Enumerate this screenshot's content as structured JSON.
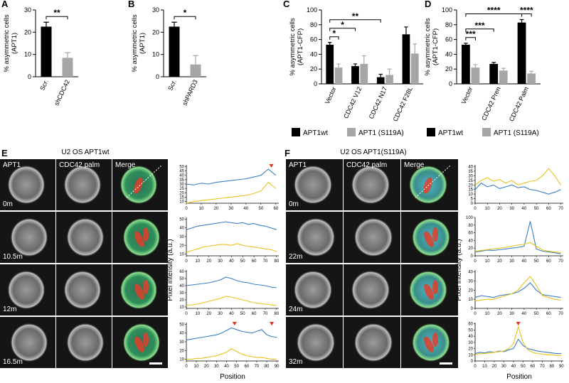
{
  "chart_data": [
    {
      "type": "bar",
      "panel": "A",
      "ylabel": [
        "% asymmetric cells",
        "(APT1)"
      ],
      "categories": [
        "Scr.",
        "shCDC42"
      ],
      "values": [
        22.5,
        8.5
      ],
      "errors": [
        2,
        2.3
      ],
      "colors": [
        "#000000",
        "#a6a6a6"
      ],
      "ylim": [
        0,
        30
      ],
      "yticks": [
        0,
        10,
        20,
        30
      ],
      "annotations": [
        {
          "text": "**",
          "bars": [
            [
              0,
              0
            ],
            [
              0,
              1
            ]
          ]
        }
      ]
    },
    {
      "type": "bar",
      "panel": "B",
      "ylabel": [
        "% asymmetric cells",
        "(APT1)"
      ],
      "categories": [
        "Scr.",
        "shPARD3"
      ],
      "values": [
        22.5,
        5.5
      ],
      "errors": [
        2,
        4
      ],
      "colors": [
        "#000000",
        "#a6a6a6"
      ],
      "ylim": [
        0,
        30
      ],
      "yticks": [
        0,
        10,
        20,
        30
      ],
      "annotations": [
        {
          "text": "*",
          "bars": [
            [
              0,
              0
            ],
            [
              0,
              1
            ]
          ]
        }
      ]
    },
    {
      "type": "bar",
      "panel": "C",
      "ylabel": [
        "% asymmetric cells",
        "(APT1-CFP)"
      ],
      "categories": [
        "Vector",
        "CDC42 V12",
        "CDC42 N17",
        "CDC42 F28L"
      ],
      "series": [
        {
          "name": "APT1wt",
          "color": "#000000",
          "values": [
            53,
            24,
            9,
            67
          ],
          "errors": [
            3,
            3,
            4,
            10
          ]
        },
        {
          "name": "APT1 (S119A)",
          "color": "#a6a6a6",
          "values": [
            22,
            27,
            12,
            41
          ],
          "errors": [
            5,
            11,
            8,
            13
          ]
        }
      ],
      "ylim": [
        0,
        100
      ],
      "yticks": [
        0,
        20,
        40,
        60,
        80,
        100
      ],
      "annotations": [
        {
          "text": "*",
          "bars": [
            [
              0,
              0
            ],
            [
              1,
              0
            ]
          ]
        },
        {
          "text": "*",
          "bars": [
            [
              0,
              0
            ],
            [
              0,
              1
            ]
          ]
        },
        {
          "text": "**",
          "bars": [
            [
              0,
              0
            ],
            [
              0,
              2
            ]
          ]
        }
      ]
    },
    {
      "type": "bar",
      "panel": "D",
      "ylabel": [
        "% asymmetric cells",
        "(APT1-CFP)"
      ],
      "categories": [
        "Vector",
        "CDC42 Pren",
        "CDC42 Palm"
      ],
      "series": [
        {
          "name": "APT1wt",
          "color": "#000000",
          "values": [
            53,
            27,
            83
          ],
          "errors": [
            2,
            2,
            4
          ]
        },
        {
          "name": "APT1 (S119A)",
          "color": "#a6a6a6",
          "values": [
            22,
            18,
            14
          ],
          "errors": [
            4,
            3,
            3
          ]
        }
      ],
      "ylim": [
        0,
        100
      ],
      "yticks": [
        0,
        20,
        40,
        60,
        80,
        100
      ],
      "annotations": [
        {
          "text": "***",
          "bars": [
            [
              0,
              0
            ],
            [
              1,
              0
            ]
          ]
        },
        {
          "text": "***",
          "bars": [
            [
              0,
              0
            ],
            [
              0,
              1
            ]
          ]
        },
        {
          "text": "****",
          "bars": [
            [
              0,
              0
            ],
            [
              0,
              2
            ]
          ]
        },
        {
          "text": "****",
          "bars": [
            [
              0,
              2
            ],
            [
              1,
              2
            ]
          ]
        }
      ]
    },
    {
      "type": "line",
      "x": [
        0,
        5,
        10,
        15,
        20,
        25,
        30,
        35,
        40,
        45,
        50,
        55,
        60
      ],
      "series": [
        {
          "color": "#3b7fc4",
          "values": [
            30,
            29,
            31,
            30,
            32,
            33,
            34,
            35,
            36,
            38,
            40,
            47,
            40
          ]
        },
        {
          "color": "#e8c21f",
          "values": [
            8,
            10,
            11,
            12,
            13,
            14,
            15,
            16,
            17,
            19,
            22,
            32,
            25
          ]
        }
      ],
      "xlim": [
        0,
        62
      ],
      "xticks": [
        0,
        10,
        20,
        30,
        40,
        50,
        60
      ],
      "ylim": [
        8,
        52
      ],
      "yticks": [
        10,
        15,
        20,
        25,
        30,
        35,
        40,
        45,
        50
      ],
      "markers": [
        57
      ],
      "marker_color": "#e03020"
    },
    {
      "type": "line",
      "x": [
        0,
        5,
        10,
        15,
        20,
        25,
        30,
        35,
        40,
        45,
        50,
        55,
        60,
        65,
        70,
        75,
        80
      ],
      "series": [
        {
          "color": "#3b7fc4",
          "values": [
            38,
            40,
            42,
            43,
            44,
            45,
            46,
            47,
            46,
            45,
            46,
            44,
            45,
            43,
            42,
            40,
            38
          ]
        },
        {
          "color": "#e8c21f",
          "values": [
            12,
            14,
            16,
            18,
            19,
            20,
            21,
            21,
            20,
            22,
            20,
            19,
            18,
            17,
            16,
            15,
            13
          ]
        }
      ],
      "xlim": [
        0,
        82
      ],
      "xticks": [
        0,
        10,
        20,
        30,
        40,
        50,
        60,
        70,
        80
      ],
      "ylim": [
        8,
        52
      ],
      "yticks": [
        10,
        20,
        30,
        40,
        50
      ]
    },
    {
      "type": "line",
      "x": [
        0,
        5,
        10,
        15,
        20,
        25,
        30,
        35,
        40,
        45,
        50,
        55,
        60,
        65,
        70,
        75,
        80
      ],
      "series": [
        {
          "color": "#3b7fc4",
          "values": [
            40,
            41,
            42,
            43,
            44,
            46,
            48,
            52,
            50,
            47,
            45,
            44,
            42,
            41,
            40,
            38,
            37
          ]
        },
        {
          "color": "#e8c21f",
          "values": [
            12,
            13,
            14,
            16,
            18,
            20,
            22,
            25,
            24,
            22,
            20,
            18,
            16,
            15,
            14,
            13,
            12
          ]
        }
      ],
      "xlim": [
        0,
        82
      ],
      "xticks": [
        0,
        10,
        20,
        30,
        40,
        50,
        60,
        70,
        80
      ],
      "ylim": [
        8,
        62
      ],
      "yticks": [
        10,
        20,
        30,
        40,
        50,
        60
      ]
    },
    {
      "type": "line",
      "x": [
        0,
        5,
        10,
        15,
        20,
        25,
        30,
        35,
        40,
        45,
        50,
        55,
        60,
        65,
        70,
        75,
        80,
        85,
        90
      ],
      "series": [
        {
          "color": "#3b7fc4",
          "values": [
            32,
            33,
            34,
            35,
            36,
            37,
            38,
            40,
            43,
            46,
            44,
            42,
            41,
            40,
            42,
            44,
            38,
            36,
            35
          ]
        },
        {
          "color": "#e8c21f",
          "values": [
            10,
            10,
            11,
            11,
            12,
            13,
            14,
            16,
            18,
            22,
            19,
            16,
            14,
            13,
            12,
            12,
            11,
            10,
            10
          ]
        }
      ],
      "xlim": [
        0,
        92
      ],
      "xticks": [
        0,
        10,
        20,
        30,
        40,
        50,
        60,
        70,
        80,
        90
      ],
      "ylim": [
        8,
        52
      ],
      "yticks": [
        10,
        20,
        30,
        40,
        50
      ],
      "markers": [
        48,
        85
      ],
      "marker_color": "#e03020"
    },
    {
      "type": "line",
      "x": [
        0,
        5,
        10,
        15,
        20,
        25,
        30,
        35,
        40,
        45,
        50,
        55,
        60,
        65,
        70
      ],
      "series": [
        {
          "color": "#3b7fc4",
          "values": [
            15,
            22,
            18,
            20,
            16,
            18,
            20,
            17,
            18,
            15,
            14,
            12,
            10,
            12,
            15
          ]
        },
        {
          "color": "#e8c21f",
          "values": [
            20,
            25,
            28,
            24,
            26,
            22,
            25,
            20,
            22,
            24,
            25,
            30,
            38,
            30,
            20
          ]
        }
      ],
      "xlim": [
        0,
        72
      ],
      "xticks": [
        0,
        10,
        20,
        30,
        40,
        50,
        60,
        70
      ],
      "ylim": [
        0,
        42
      ],
      "yticks": [
        0,
        5,
        10,
        15,
        20,
        25,
        30,
        35,
        40
      ]
    },
    {
      "type": "line",
      "x": [
        0,
        5,
        10,
        15,
        20,
        25,
        30,
        35,
        40,
        45,
        50,
        55,
        60,
        65,
        70
      ],
      "series": [
        {
          "color": "#3b7fc4",
          "values": [
            10,
            12,
            15,
            14,
            16,
            18,
            20,
            22,
            25,
            90,
            18,
            12,
            10,
            8,
            5
          ]
        },
        {
          "color": "#e8c21f",
          "values": [
            12,
            14,
            16,
            18,
            20,
            22,
            25,
            28,
            30,
            35,
            25,
            15,
            12,
            10,
            8
          ]
        }
      ],
      "xlim": [
        0,
        72
      ],
      "xticks": [
        0,
        10,
        20,
        30,
        40,
        50,
        60,
        70
      ],
      "ylim": [
        0,
        100
      ],
      "yticks": [
        0,
        20,
        40,
        60,
        80,
        100
      ]
    },
    {
      "type": "line",
      "x": [
        0,
        5,
        10,
        15,
        20,
        25,
        30,
        35,
        40,
        45,
        50,
        55,
        60,
        65,
        70
      ],
      "series": [
        {
          "color": "#3b7fc4",
          "values": [
            12,
            14,
            13,
            12,
            14,
            15,
            16,
            18,
            22,
            28,
            20,
            15,
            14,
            13,
            12
          ]
        },
        {
          "color": "#e8c21f",
          "values": [
            8,
            9,
            10,
            10,
            12,
            14,
            16,
            20,
            28,
            35,
            25,
            14,
            12,
            10,
            9
          ]
        }
      ],
      "xlim": [
        0,
        72
      ],
      "xticks": [
        0,
        10,
        20,
        30,
        40,
        50,
        60,
        70
      ],
      "ylim": [
        0,
        42
      ],
      "yticks": [
        0,
        10,
        20,
        30,
        40
      ]
    },
    {
      "type": "line",
      "x": [
        0,
        5,
        10,
        15,
        20,
        25,
        30,
        35,
        40,
        45,
        50,
        55,
        60,
        65,
        70,
        75,
        80,
        85,
        90
      ],
      "series": [
        {
          "color": "#3b7fc4",
          "values": [
            12,
            14,
            13,
            15,
            14,
            16,
            15,
            18,
            20,
            35,
            25,
            20,
            18,
            16,
            15,
            14,
            13,
            12,
            12
          ]
        },
        {
          "color": "#e8c21f",
          "values": [
            10,
            12,
            12,
            13,
            14,
            15,
            16,
            20,
            28,
            55,
            30,
            18,
            14,
            12,
            11,
            10,
            10,
            9,
            9
          ]
        }
      ],
      "xlim": [
        0,
        92
      ],
      "xticks": [
        0,
        10,
        20,
        30,
        40,
        50,
        60,
        70,
        80,
        90
      ],
      "ylim": [
        0,
        62
      ],
      "yticks": [
        0,
        10,
        20,
        30,
        40,
        50,
        60
      ],
      "markers": [
        45
      ],
      "marker_color": "#e03020"
    }
  ],
  "image_panels": [
    {
      "letter": "E",
      "title": "U2 OS APT1wt",
      "channels": [
        "APT1",
        "CDC42 palm",
        "Merge"
      ],
      "times": [
        "0m",
        "10.5m",
        "12m",
        "16.5m"
      ],
      "ylabel": "Pixel intensity (a.u.)",
      "xlabel": "Position"
    },
    {
      "letter": "F",
      "title": "U2 OS APT1(S119A)",
      "channels": [
        "APT1",
        "CDC42 palm",
        "Merge"
      ],
      "times": [
        "0m",
        "22m",
        "24m",
        "32m"
      ],
      "ylabel": "Pixel intensity (a.u.)",
      "xlabel": "Position"
    }
  ]
}
